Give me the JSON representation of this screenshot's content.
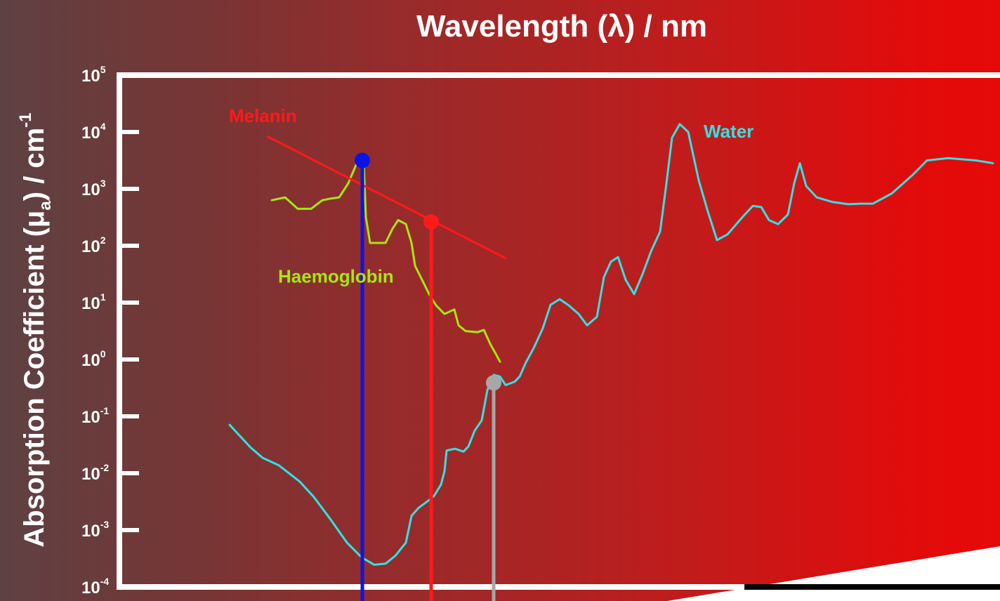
{
  "chart_data": {
    "type": "line",
    "title": "Wavelength (λ) / nm",
    "ylabel": {
      "main": "Absorption Coefficient (μ",
      "sub": "a",
      "mid": ") / cm",
      "sup": "-1"
    },
    "yscale": "log",
    "ylim": [
      -4,
      5
    ],
    "xlim": [
      0,
      1424
    ],
    "y_ticks": [
      {
        "base": "10",
        "exp": "5",
        "log": 5
      },
      {
        "base": "10",
        "exp": "4",
        "log": 4
      },
      {
        "base": "10",
        "exp": "3",
        "log": 3
      },
      {
        "base": "10",
        "exp": "2",
        "log": 2
      },
      {
        "base": "10",
        "exp": "1",
        "log": 1
      },
      {
        "base": "10",
        "exp": "0",
        "log": 0
      },
      {
        "base": "10",
        "exp": "-1",
        "log": -1
      },
      {
        "base": "10",
        "exp": "-2",
        "log": -2
      },
      {
        "base": "10",
        "exp": "-3",
        "log": -3
      },
      {
        "base": "10",
        "exp": "-4",
        "log": -4
      }
    ],
    "grid": false,
    "series": [
      {
        "name": "Water",
        "color": "#2fe3e6",
        "label_at": [
          1002,
          3.9
        ],
        "points": [
          [
            327,
            -1.15
          ],
          [
            357,
            -1.55
          ],
          [
            374,
            -1.73
          ],
          [
            397,
            -1.86
          ],
          [
            427,
            -2.15
          ],
          [
            447,
            -2.42
          ],
          [
            470,
            -2.8
          ],
          [
            494,
            -3.22
          ],
          [
            515,
            -3.48
          ],
          [
            533,
            -3.61
          ],
          [
            549,
            -3.59
          ],
          [
            563,
            -3.45
          ],
          [
            578,
            -3.22
          ],
          [
            586,
            -2.75
          ],
          [
            596,
            -2.61
          ],
          [
            607,
            -2.51
          ],
          [
            618,
            -2.4
          ],
          [
            628,
            -2.2
          ],
          [
            633,
            -1.96
          ],
          [
            636,
            -1.6
          ],
          [
            648,
            -1.57
          ],
          [
            660,
            -1.62
          ],
          [
            667,
            -1.53
          ],
          [
            676,
            -1.25
          ],
          [
            686,
            -1.07
          ],
          [
            694,
            -0.54
          ],
          [
            703,
            -0.27
          ],
          [
            712,
            -0.3
          ],
          [
            720,
            -0.45
          ],
          [
            733,
            -0.39
          ],
          [
            740,
            -0.3
          ],
          [
            749,
            -0.05
          ],
          [
            760,
            0.2
          ],
          [
            773,
            0.55
          ],
          [
            784,
            0.96
          ],
          [
            797,
            1.06
          ],
          [
            810,
            0.95
          ],
          [
            824,
            0.8
          ],
          [
            836,
            0.6
          ],
          [
            850,
            0.75
          ],
          [
            860,
            1.45
          ],
          [
            870,
            1.72
          ],
          [
            880,
            1.8
          ],
          [
            891,
            1.4
          ],
          [
            903,
            1.15
          ],
          [
            915,
            1.5
          ],
          [
            927,
            1.9
          ],
          [
            940,
            2.25
          ],
          [
            948,
            3.0
          ],
          [
            957,
            3.9
          ],
          [
            968,
            4.14
          ],
          [
            980,
            4.0
          ],
          [
            995,
            3.15
          ],
          [
            1008,
            2.6
          ],
          [
            1021,
            2.1
          ],
          [
            1036,
            2.2
          ],
          [
            1057,
            2.5
          ],
          [
            1072,
            2.7
          ],
          [
            1084,
            2.68
          ],
          [
            1095,
            2.45
          ],
          [
            1108,
            2.38
          ],
          [
            1122,
            2.55
          ],
          [
            1131,
            3.1
          ],
          [
            1139,
            3.45
          ],
          [
            1148,
            3.05
          ],
          [
            1163,
            2.85
          ],
          [
            1185,
            2.77
          ],
          [
            1208,
            2.73
          ],
          [
            1225,
            2.74
          ],
          [
            1243,
            2.74
          ],
          [
            1270,
            2.92
          ],
          [
            1300,
            3.25
          ],
          [
            1320,
            3.5
          ],
          [
            1350,
            3.54
          ],
          [
            1390,
            3.5
          ],
          [
            1414,
            3.45
          ]
        ]
      },
      {
        "name": "Haemoglobin",
        "color": "#a4e80f",
        "label_at": [
          396,
          1.35
        ],
        "points": [
          [
            387,
            2.8
          ],
          [
            406,
            2.85
          ],
          [
            424,
            2.65
          ],
          [
            443,
            2.65
          ],
          [
            459,
            2.8
          ],
          [
            471,
            2.83
          ],
          [
            483,
            2.85
          ],
          [
            496,
            3.1
          ],
          [
            508,
            3.45
          ],
          [
            515,
            3.52
          ],
          [
            518,
            3.45
          ],
          [
            521,
            2.5
          ],
          [
            527,
            2.05
          ],
          [
            538,
            2.05
          ],
          [
            549,
            2.05
          ],
          [
            559,
            2.3
          ],
          [
            567,
            2.45
          ],
          [
            578,
            2.38
          ],
          [
            586,
            2.05
          ],
          [
            591,
            1.65
          ],
          [
            601,
            1.4
          ],
          [
            611,
            1.15
          ],
          [
            621,
            0.95
          ],
          [
            633,
            0.8
          ],
          [
            647,
            0.88
          ],
          [
            653,
            0.6
          ],
          [
            663,
            0.5
          ],
          [
            680,
            0.48
          ],
          [
            689,
            0.52
          ],
          [
            699,
            0.25
          ],
          [
            706,
            0.1
          ],
          [
            712,
            -0.04
          ]
        ]
      },
      {
        "name": "Melanin",
        "color": "#ff1a1a",
        "label_at": [
          326,
          4.17
        ],
        "points": [
          [
            381,
            3.92
          ],
          [
            720,
            1.78
          ]
        ]
      }
    ],
    "markers": [
      {
        "x": 516,
        "y": 3.5,
        "color": "#0a14e6"
      },
      {
        "x": 614,
        "y": 2.42,
        "color": "#ff1a1a"
      },
      {
        "x": 703,
        "y": -0.41,
        "color": "#a7a7a7"
      }
    ],
    "legend": "none"
  },
  "colors": {
    "axis": "#ffffff",
    "bottom_axis": "#000000",
    "corner_wedge": "#ffffff"
  }
}
